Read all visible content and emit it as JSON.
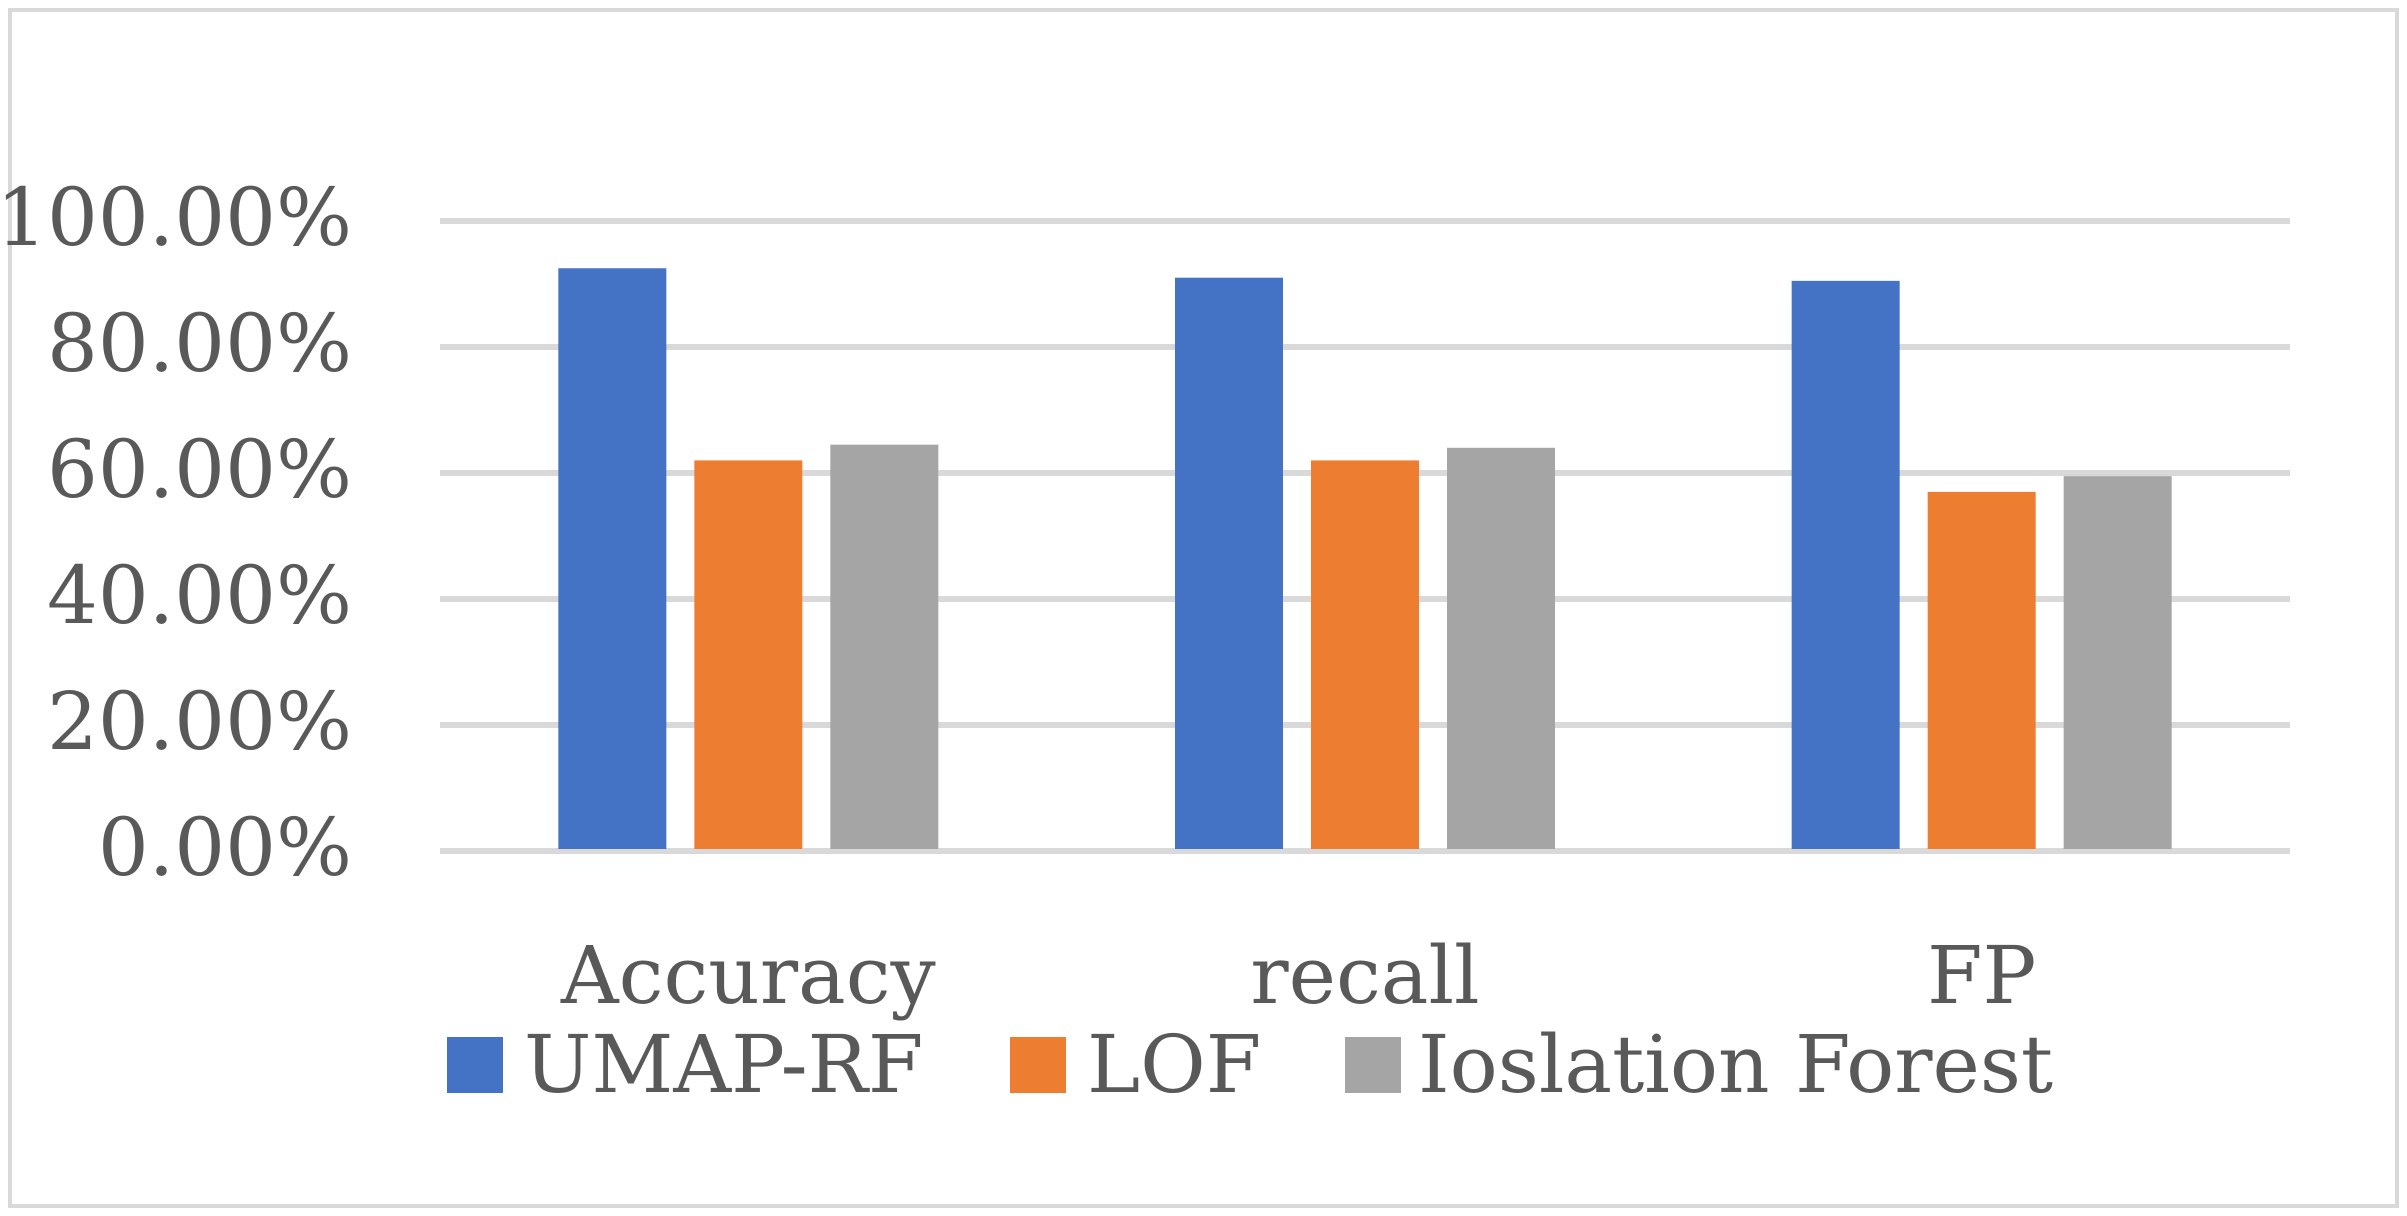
{
  "chart_data": {
    "type": "bar",
    "title": "",
    "xlabel": "",
    "ylabel": "",
    "categories": [
      "Accuracy",
      "recall",
      "FP"
    ],
    "series": [
      {
        "name": "UMAP-RF",
        "values": [
          92.5,
          91.0,
          90.5
        ],
        "color": "#4472C4"
      },
      {
        "name": "LOF",
        "values": [
          62.0,
          62.0,
          57.0
        ],
        "color": "#ED7D31"
      },
      {
        "name": "Ioslation Forest",
        "values": [
          64.5,
          64.0,
          59.5
        ],
        "color": "#A5A5A5"
      }
    ],
    "ylim": [
      0,
      100
    ],
    "yticks": [
      0,
      20,
      40,
      60,
      80,
      100
    ],
    "ytick_labels": [
      "0.00%",
      "20.00%",
      "40.00%",
      "60.00%",
      "80.00%",
      "100.00%"
    ],
    "grid": true,
    "legend_position": "bottom"
  },
  "colors": {
    "gridline": "#D9D9D9",
    "frame": "#D9D9D9",
    "text": "#595959"
  }
}
